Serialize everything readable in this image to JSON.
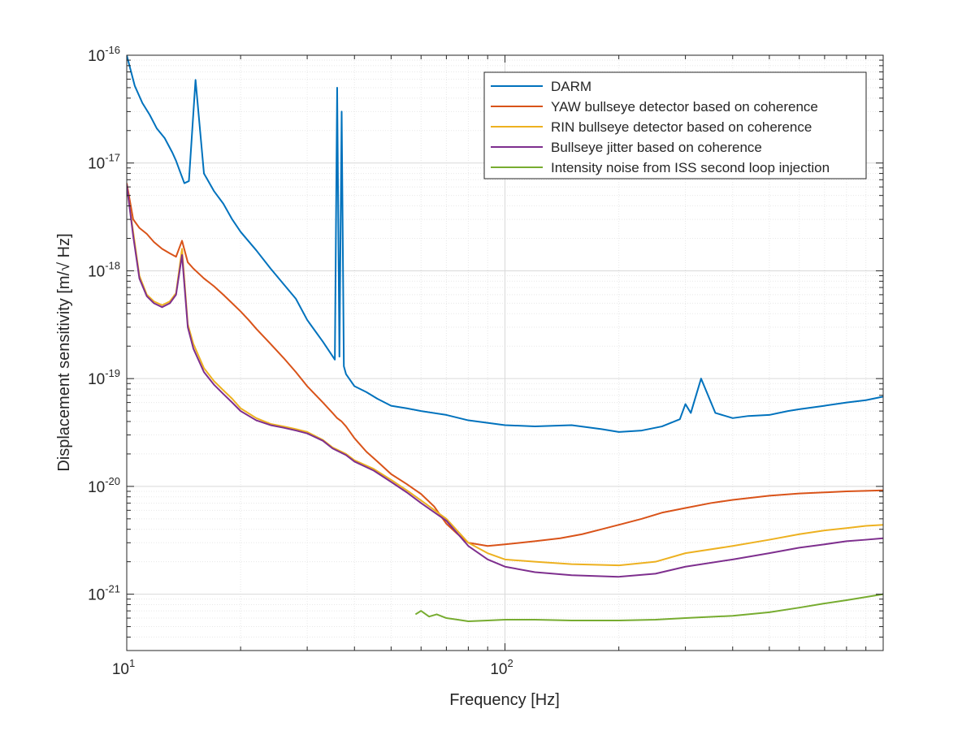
{
  "chart_data": {
    "type": "line",
    "title": "",
    "xlabel": "Frequency [Hz]",
    "ylabel": "Displacement sensitivity [m/√ Hz]",
    "x_scale": "log",
    "y_scale": "log",
    "xlim": [
      10,
      1000
    ],
    "ylim": [
      3e-22,
      1e-16
    ],
    "grid": true,
    "legend_position": "top-right",
    "x_ticks": [
      {
        "base": "10",
        "exp": "1",
        "value": 10
      },
      {
        "base": "10",
        "exp": "2",
        "value": 100
      }
    ],
    "y_ticks": [
      {
        "base": "10",
        "exp": "-16",
        "value": 1e-16
      },
      {
        "base": "10",
        "exp": "-17",
        "value": 1e-17
      },
      {
        "base": "10",
        "exp": "-18",
        "value": 1e-18
      },
      {
        "base": "10",
        "exp": "-19",
        "value": 1e-19
      },
      {
        "base": "10",
        "exp": "-20",
        "value": 1e-20
      },
      {
        "base": "10",
        "exp": "-21",
        "value": 1e-21
      }
    ],
    "series": [
      {
        "name": "DARM",
        "color": "#0072bd",
        "x": [
          10,
          10.5,
          11,
          11.5,
          12,
          12.6,
          13.2,
          13.5,
          13.8,
          14.2,
          14.6,
          15.2,
          16,
          17,
          18,
          19,
          20,
          22,
          24,
          26,
          28,
          30,
          33,
          35.5,
          36,
          36.5,
          37,
          37.5,
          38,
          40,
          43,
          46,
          50,
          55,
          60,
          70,
          80,
          100,
          120,
          150,
          180,
          200,
          230,
          260,
          290,
          300,
          310,
          330,
          360,
          400,
          440,
          500,
          560,
          600,
          700,
          800,
          900,
          1000
        ],
        "y": [
          1e-16,
          5.2e-17,
          3.6e-17,
          2.8e-17,
          2.1e-17,
          1.7e-17,
          1.25e-17,
          1.05e-17,
          8.5e-18,
          6.5e-18,
          6.8e-18,
          5.9e-17,
          8e-18,
          5.5e-18,
          4.2e-18,
          3e-18,
          2.3e-18,
          1.55e-18,
          1.05e-18,
          7.5e-19,
          5.5e-19,
          3.5e-19,
          2.2e-19,
          1.5e-19,
          5e-17,
          1.6e-19,
          3e-17,
          1.3e-19,
          1.1e-19,
          8.5e-20,
          7.5e-20,
          6.5e-20,
          5.6e-20,
          5.3e-20,
          5e-20,
          4.6e-20,
          4.1e-20,
          3.7e-20,
          3.6e-20,
          3.7e-20,
          3.4e-20,
          3.2e-20,
          3.3e-20,
          3.6e-20,
          4.2e-20,
          5.8e-20,
          4.8e-20,
          1e-19,
          4.8e-20,
          4.3e-20,
          4.5e-20,
          4.6e-20,
          5e-20,
          5.2e-20,
          5.6e-20,
          6e-20,
          6.3e-20,
          6.8e-20
        ]
      },
      {
        "name": "YAW bullseye detector based on coherence",
        "color": "#d95319",
        "x": [
          10,
          10.4,
          10.8,
          11.3,
          11.8,
          12.4,
          13,
          13.5,
          14,
          14.5,
          15,
          16,
          17,
          18,
          19,
          20,
          21,
          22,
          24,
          26,
          28,
          30,
          33,
          35,
          36,
          37,
          38,
          40,
          43,
          46,
          50,
          55,
          60,
          65,
          70,
          75,
          80,
          90,
          100,
          110,
          120,
          140,
          160,
          180,
          200,
          230,
          260,
          300,
          350,
          400,
          500,
          600,
          700,
          800,
          900,
          1000
        ],
        "y": [
          6.5e-18,
          3e-18,
          2.5e-18,
          2.2e-18,
          1.85e-18,
          1.6e-18,
          1.45e-18,
          1.35e-18,
          1.9e-18,
          1.2e-18,
          1.05e-18,
          8.5e-19,
          7.2e-19,
          6e-19,
          5e-19,
          4.2e-19,
          3.5e-19,
          2.9e-19,
          2.1e-19,
          1.55e-19,
          1.15e-19,
          8.5e-20,
          6e-20,
          4.8e-20,
          4.3e-20,
          4e-20,
          3.6e-20,
          2.8e-20,
          2.1e-20,
          1.7e-20,
          1.3e-20,
          1.05e-20,
          8.5e-21,
          6.5e-21,
          4.5e-21,
          3.6e-21,
          3e-21,
          2.8e-21,
          2.9e-21,
          3e-21,
          3.1e-21,
          3.3e-21,
          3.6e-21,
          4e-21,
          4.4e-21,
          5e-21,
          5.7e-21,
          6.3e-21,
          7e-21,
          7.5e-21,
          8.2e-21,
          8.6e-21,
          8.8e-21,
          9e-21,
          9.1e-21,
          9.2e-21
        ]
      },
      {
        "name": "RIN bullseye detector based on coherence",
        "color": "#edb120",
        "x": [
          10,
          10.4,
          10.8,
          11.3,
          11.8,
          12.4,
          13,
          13.5,
          14,
          14.5,
          15,
          16,
          17,
          18,
          19,
          20,
          22,
          24,
          26,
          28,
          30,
          33,
          35,
          38,
          40,
          45,
          50,
          55,
          60,
          70,
          80,
          90,
          100,
          120,
          150,
          200,
          250,
          300,
          400,
          500,
          600,
          700,
          800,
          900,
          1000
        ],
        "y": [
          6e-18,
          2.3e-18,
          9e-19,
          6e-19,
          5.2e-19,
          4.8e-19,
          5.2e-19,
          6.2e-19,
          1.6e-18,
          3.2e-19,
          2.1e-19,
          1.25e-19,
          9.5e-20,
          7.8e-20,
          6.5e-20,
          5.3e-20,
          4.3e-20,
          3.8e-20,
          3.6e-20,
          3.4e-20,
          3.2e-20,
          2.7e-20,
          2.3e-20,
          2e-20,
          1.75e-20,
          1.45e-20,
          1.15e-20,
          9.2e-21,
          7.4e-21,
          5e-21,
          3e-21,
          2.4e-21,
          2.1e-21,
          2e-21,
          1.9e-21,
          1.85e-21,
          2e-21,
          2.4e-21,
          2.8e-21,
          3.2e-21,
          3.6e-21,
          3.9e-21,
          4.1e-21,
          4.3e-21,
          4.4e-21
        ]
      },
      {
        "name": "Bullseye jitter based on coherence",
        "color": "#7e2f8e",
        "x": [
          10,
          10.4,
          10.8,
          11.3,
          11.8,
          12.4,
          13,
          13.5,
          14,
          14.5,
          15,
          16,
          17,
          18,
          19,
          20,
          22,
          24,
          26,
          28,
          30,
          33,
          35,
          38,
          40,
          45,
          50,
          55,
          60,
          70,
          80,
          90,
          100,
          120,
          150,
          200,
          250,
          300,
          400,
          500,
          600,
          700,
          800,
          900,
          1000
        ],
        "y": [
          6.3e-18,
          2.1e-18,
          8.5e-19,
          5.8e-19,
          5e-19,
          4.6e-19,
          5e-19,
          6e-19,
          1.4e-18,
          3e-19,
          1.9e-19,
          1.15e-19,
          8.8e-20,
          7.2e-20,
          6e-20,
          5e-20,
          4.1e-20,
          3.7e-20,
          3.5e-20,
          3.3e-20,
          3.1e-20,
          2.65e-20,
          2.25e-20,
          1.95e-20,
          1.7e-20,
          1.4e-20,
          1.1e-20,
          8.8e-21,
          7e-21,
          4.8e-21,
          2.8e-21,
          2.1e-21,
          1.8e-21,
          1.6e-21,
          1.5e-21,
          1.45e-21,
          1.55e-21,
          1.8e-21,
          2.1e-21,
          2.4e-21,
          2.7e-21,
          2.9e-21,
          3.1e-21,
          3.2e-21,
          3.3e-21
        ]
      },
      {
        "name": "Intensity noise from ISS second loop injection",
        "color": "#77ac30",
        "x": [
          58,
          60,
          63,
          66,
          70,
          75,
          80,
          90,
          100,
          120,
          150,
          200,
          250,
          300,
          400,
          500,
          600,
          700,
          800,
          900,
          1000
        ],
        "y": [
          6.5e-22,
          7e-22,
          6.2e-22,
          6.5e-22,
          6e-22,
          5.8e-22,
          5.6e-22,
          5.7e-22,
          5.8e-22,
          5.8e-22,
          5.7e-22,
          5.7e-22,
          5.8e-22,
          6e-22,
          6.3e-22,
          6.8e-22,
          7.5e-22,
          8.2e-22,
          8.8e-22,
          9.4e-22,
          1e-21
        ]
      }
    ]
  }
}
